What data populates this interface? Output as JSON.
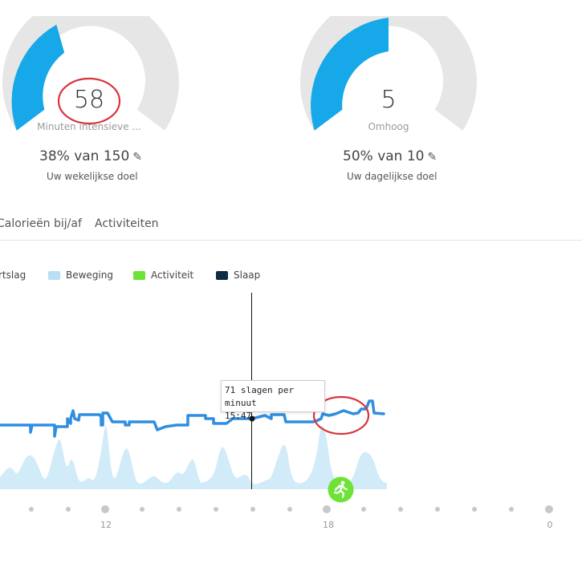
{
  "gauges": [
    {
      "value": "58",
      "label": "Minuten intensieve ...",
      "goal_text": "38% van 150",
      "goal_desc": "Uw wekelijkse doel",
      "progress_fraction": 0.38,
      "accent_color": "#16a8e8"
    },
    {
      "value": "5",
      "label": "Omhoog",
      "goal_text": "50% van 10",
      "goal_desc": "Uw dagelijkse doel",
      "progress_fraction": 0.5,
      "accent_color": "#16a8e8"
    }
  ],
  "edit_icon": "pencil-icon",
  "tabs": [
    "Calorieën bij/af",
    "Activiteiten"
  ],
  "legend": [
    {
      "label": "rtslag",
      "color": "#2f7fd2"
    },
    {
      "label": "Beweging",
      "color": "#b9dff5"
    },
    {
      "label": "Activiteit",
      "color": "#6ee236"
    },
    {
      "label": "Slaap",
      "color": "#0f2b45"
    }
  ],
  "tooltip": {
    "line1": "71 slagen per minuut",
    "line2": "15:47"
  },
  "x_axis": {
    "labels": [
      "12",
      "18",
      "0"
    ]
  },
  "activity_marker_icon": "running-person-icon",
  "annotation_color": "#d9333d"
}
